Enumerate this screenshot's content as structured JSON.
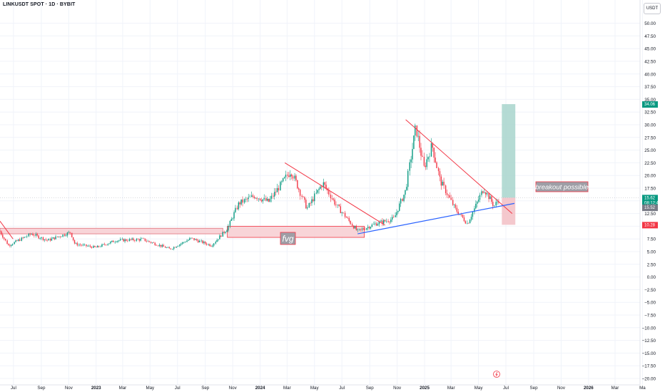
{
  "header": {
    "symbol_title": "LINKUSDT SPOT · 1D · BYBIT",
    "currency": "USDT"
  },
  "colors": {
    "up": "#089981",
    "down": "#f23645",
    "trend_red": "#f23645",
    "trend_blue": "#2962ff",
    "zone_fill": "#f7cdd1",
    "target_fill": "#a8d5cc",
    "stop_fill": "#f3c2c8"
  },
  "chart_data": {
    "type": "candlestick",
    "y_axis": {
      "ticks": [
        "50.00",
        "47.50",
        "45.00",
        "42.50",
        "40.00",
        "37.50",
        "35.00",
        "32.50",
        "30.00",
        "27.50",
        "25.00",
        "22.50",
        "20.00",
        "17.50",
        "15.00",
        "12.50",
        "10.00",
        "7.50",
        "5.00",
        "2.50",
        "0.00",
        "−2.50",
        "−5.00",
        "−7.50",
        "−10.00",
        "−12.50",
        "−15.00",
        "−17.50",
        "−20.00"
      ],
      "range": [
        -20,
        52.5
      ]
    },
    "x_axis": {
      "ticks": [
        "Jul",
        "Sep",
        "Nov",
        "2023",
        "Mar",
        "May",
        "Jul",
        "Sep",
        "Nov",
        "2024",
        "Mar",
        "May",
        "Jul",
        "Sep",
        "Nov",
        "2025",
        "Mar",
        "May",
        "Jul",
        "Sep",
        "Nov",
        "2026",
        "Mar",
        "Ma"
      ],
      "range": [
        "2022-06-01",
        "2026-07-15"
      ]
    },
    "series_outline": [
      {
        "x": "2022-06-01",
        "y": 9.0
      },
      {
        "x": "2022-06-20",
        "y": 6.2
      },
      {
        "x": "2022-08-10",
        "y": 8.5
      },
      {
        "x": "2022-09-15",
        "y": 7.2
      },
      {
        "x": "2022-11-05",
        "y": 8.8
      },
      {
        "x": "2022-11-15",
        "y": 6.5
      },
      {
        "x": "2023-01-01",
        "y": 5.8
      },
      {
        "x": "2023-02-15",
        "y": 7.2
      },
      {
        "x": "2023-04-15",
        "y": 7.4
      },
      {
        "x": "2023-06-15",
        "y": 5.5
      },
      {
        "x": "2023-08-01",
        "y": 7.6
      },
      {
        "x": "2023-09-15",
        "y": 6.2
      },
      {
        "x": "2023-10-20",
        "y": 9.5
      },
      {
        "x": "2023-11-15",
        "y": 14.5
      },
      {
        "x": "2023-12-20",
        "y": 16.0
      },
      {
        "x": "2024-01-20",
        "y": 14.8
      },
      {
        "x": "2024-03-10",
        "y": 21.0
      },
      {
        "x": "2024-04-15",
        "y": 13.5
      },
      {
        "x": "2024-05-20",
        "y": 18.5
      },
      {
        "x": "2024-06-20",
        "y": 14.0
      },
      {
        "x": "2024-08-05",
        "y": 9.0
      },
      {
        "x": "2024-09-15",
        "y": 10.5
      },
      {
        "x": "2024-10-25",
        "y": 11.5
      },
      {
        "x": "2024-11-20",
        "y": 17.0
      },
      {
        "x": "2024-12-13",
        "y": 29.5
      },
      {
        "x": "2024-12-31",
        "y": 21.5
      },
      {
        "x": "2025-01-18",
        "y": 26.0
      },
      {
        "x": "2025-02-05",
        "y": 19.0
      },
      {
        "x": "2025-03-10",
        "y": 13.5
      },
      {
        "x": "2025-04-07",
        "y": 10.5
      },
      {
        "x": "2025-05-13",
        "y": 17.5
      },
      {
        "x": "2025-06-05",
        "y": 14.0
      },
      {
        "x": "2025-06-18",
        "y": 15.52
      }
    ],
    "annotations": {
      "fvg_label": "fvg",
      "breakout_label": "breakout possible",
      "zones": [
        {
          "name": "upper-zone",
          "x0": "2022-06-01",
          "x1": "2023-10-10",
          "y0": 8.5,
          "y1": 9.6
        },
        {
          "name": "fvg-zone",
          "x0": "2023-10-20",
          "x1": "2024-08-20",
          "y0": 7.8,
          "y1": 10.0
        }
      ],
      "trendlines": [
        {
          "name": "trendline-1",
          "color": "red",
          "from": {
            "x": "2022-06-01",
            "y": 11.0
          },
          "to": {
            "x": "2022-06-30",
            "y": 7.5
          }
        },
        {
          "name": "trendline-2",
          "color": "red",
          "from": {
            "x": "2024-02-25",
            "y": 22.5
          },
          "to": {
            "x": "2024-10-05",
            "y": 10.2
          }
        },
        {
          "name": "trendline-3",
          "color": "red",
          "from": {
            "x": "2024-11-20",
            "y": 31.0
          },
          "to": {
            "x": "2025-07-15",
            "y": 12.5
          }
        },
        {
          "name": "support-line",
          "color": "blue",
          "from": {
            "x": "2024-08-05",
            "y": 8.5
          },
          "to": {
            "x": "2025-07-20",
            "y": 14.5
          }
        }
      ],
      "position": {
        "x0": "2025-06-22",
        "x1": "2025-07-22",
        "entry": 15.62,
        "target": 34.06,
        "stop": 10.28
      }
    },
    "price_labels": {
      "target": "34.06",
      "current": "15.62",
      "countdown": "08:12:47",
      "last": "15.52",
      "hidden": "14.50",
      "stop": "10.28"
    }
  }
}
